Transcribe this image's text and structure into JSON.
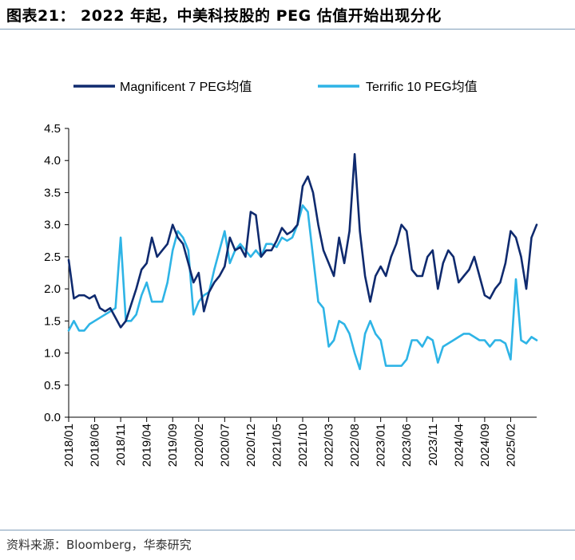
{
  "header": {
    "title": "图表21： 2022 年起，中美科技股的 PEG 估值开始出现分化"
  },
  "footer": {
    "source": "资料来源：Bloomberg，华泰研究"
  },
  "colors": {
    "mag7": "#0f2a6e",
    "terrific10": "#2eb4e6",
    "rule": "#7f9db9"
  },
  "chart_data": {
    "type": "line",
    "title": "",
    "xlabel": "",
    "ylabel": "",
    "ylim": [
      0,
      4.5
    ],
    "yticks": [
      "0.0",
      "0.5",
      "1.0",
      "1.5",
      "2.0",
      "2.5",
      "3.0",
      "3.5",
      "4.0",
      "4.5"
    ],
    "xticks": [
      "2018/01",
      "2018/06",
      "2018/11",
      "2019/04",
      "2019/09",
      "2020/02",
      "2020/07",
      "2020/12",
      "2021/05",
      "2021/10",
      "2022/03",
      "2022/08",
      "2023/01",
      "2023/06",
      "2023/11",
      "2024/04",
      "2024/09",
      "2025/02"
    ],
    "grid": false,
    "legend_position": "top",
    "series": [
      {
        "name": "Magnificent 7 PEG均值",
        "x": [
          "2018/01",
          "2018/02",
          "2018/03",
          "2018/04",
          "2018/05",
          "2018/06",
          "2018/07",
          "2018/08",
          "2018/09",
          "2018/10",
          "2018/11",
          "2018/12",
          "2019/01",
          "2019/02",
          "2019/03",
          "2019/04",
          "2019/05",
          "2019/06",
          "2019/07",
          "2019/08",
          "2019/09",
          "2019/10",
          "2019/11",
          "2019/12",
          "2020/01",
          "2020/02",
          "2020/03",
          "2020/04",
          "2020/05",
          "2020/06",
          "2020/07",
          "2020/08",
          "2020/09",
          "2020/10",
          "2020/11",
          "2020/12",
          "2021/01",
          "2021/02",
          "2021/03",
          "2021/04",
          "2021/05",
          "2021/06",
          "2021/07",
          "2021/08",
          "2021/09",
          "2021/10",
          "2021/11",
          "2021/12",
          "2022/01",
          "2022/02",
          "2022/03",
          "2022/04",
          "2022/05",
          "2022/06",
          "2022/07",
          "2022/08",
          "2022/09",
          "2022/10",
          "2022/11",
          "2022/12",
          "2023/01",
          "2023/02",
          "2023/03",
          "2023/04",
          "2023/05",
          "2023/06",
          "2023/07",
          "2023/08",
          "2023/09",
          "2023/10",
          "2023/11",
          "2023/12",
          "2024/01",
          "2024/02",
          "2024/03",
          "2024/04",
          "2024/05",
          "2024/06",
          "2024/07",
          "2024/08",
          "2024/09",
          "2024/10",
          "2024/11",
          "2024/12",
          "2025/01",
          "2025/02",
          "2025/03",
          "2025/04",
          "2025/05",
          "2025/06",
          "2025/07"
        ],
        "values": [
          2.45,
          1.85,
          1.9,
          1.9,
          1.85,
          1.9,
          1.7,
          1.65,
          1.7,
          1.55,
          1.4,
          1.5,
          1.75,
          2.0,
          2.3,
          2.4,
          2.8,
          2.5,
          2.6,
          2.7,
          3.0,
          2.8,
          2.7,
          2.4,
          2.1,
          2.25,
          1.65,
          1.95,
          2.1,
          2.2,
          2.35,
          2.8,
          2.6,
          2.65,
          2.5,
          3.2,
          3.15,
          2.5,
          2.6,
          2.6,
          2.75,
          2.95,
          2.85,
          2.9,
          3.0,
          3.6,
          3.75,
          3.5,
          3.0,
          2.6,
          2.4,
          2.2,
          2.8,
          2.4,
          2.9,
          4.1,
          2.9,
          2.2,
          1.8,
          2.2,
          2.35,
          2.2,
          2.5,
          2.7,
          3.0,
          2.9,
          2.3,
          2.2,
          2.2,
          2.5,
          2.6,
          2.0,
          2.4,
          2.6,
          2.5,
          2.1,
          2.2,
          2.3,
          2.5,
          2.2,
          1.9,
          1.85,
          2.0,
          2.1,
          2.4,
          2.9,
          2.8,
          2.5,
          2.0,
          2.8,
          3.0
        ]
      },
      {
        "name": "Terrific 10 PEG均值",
        "x": [
          "2018/01",
          "2018/02",
          "2018/03",
          "2018/04",
          "2018/05",
          "2018/06",
          "2018/07",
          "2018/08",
          "2018/09",
          "2018/10",
          "2018/11",
          "2018/12",
          "2019/01",
          "2019/02",
          "2019/03",
          "2019/04",
          "2019/05",
          "2019/06",
          "2019/07",
          "2019/08",
          "2019/09",
          "2019/10",
          "2019/11",
          "2019/12",
          "2020/01",
          "2020/02",
          "2020/03",
          "2020/04",
          "2020/05",
          "2020/06",
          "2020/07",
          "2020/08",
          "2020/09",
          "2020/10",
          "2020/11",
          "2020/12",
          "2021/01",
          "2021/02",
          "2021/03",
          "2021/04",
          "2021/05",
          "2021/06",
          "2021/07",
          "2021/08",
          "2021/09",
          "2021/10",
          "2021/11",
          "2021/12",
          "2022/01",
          "2022/02",
          "2022/03",
          "2022/04",
          "2022/05",
          "2022/06",
          "2022/07",
          "2022/08",
          "2022/09",
          "2022/10",
          "2022/11",
          "2022/12",
          "2023/01",
          "2023/02",
          "2023/03",
          "2023/04",
          "2023/05",
          "2023/06",
          "2023/07",
          "2023/08",
          "2023/09",
          "2023/10",
          "2023/11",
          "2023/12",
          "2024/01",
          "2024/02",
          "2024/03",
          "2024/04",
          "2024/05",
          "2024/06",
          "2024/07",
          "2024/08",
          "2024/09",
          "2024/10",
          "2024/11",
          "2024/12",
          "2025/01",
          "2025/02",
          "2025/03",
          "2025/04",
          "2025/05",
          "2025/06",
          "2025/07"
        ],
        "values": [
          1.35,
          1.5,
          1.35,
          1.35,
          1.45,
          1.5,
          1.55,
          1.6,
          1.65,
          1.7,
          2.8,
          1.5,
          1.5,
          1.6,
          1.9,
          2.1,
          1.8,
          1.8,
          1.8,
          2.1,
          2.6,
          2.9,
          2.8,
          2.6,
          1.6,
          1.8,
          1.9,
          1.95,
          2.3,
          2.6,
          2.9,
          2.4,
          2.6,
          2.7,
          2.6,
          2.5,
          2.6,
          2.5,
          2.7,
          2.7,
          2.65,
          2.8,
          2.75,
          2.8,
          3.0,
          3.3,
          3.2,
          2.5,
          1.8,
          1.7,
          1.1,
          1.2,
          1.5,
          1.45,
          1.3,
          1.0,
          0.75,
          1.3,
          1.5,
          1.3,
          1.2,
          0.8,
          0.8,
          0.8,
          0.8,
          0.9,
          1.2,
          1.2,
          1.1,
          1.25,
          1.2,
          0.85,
          1.1,
          1.15,
          1.2,
          1.25,
          1.3,
          1.3,
          1.25,
          1.2,
          1.2,
          1.1,
          1.2,
          1.2,
          1.15,
          0.9,
          2.15,
          1.2,
          1.15,
          1.25,
          1.2
        ]
      }
    ]
  }
}
